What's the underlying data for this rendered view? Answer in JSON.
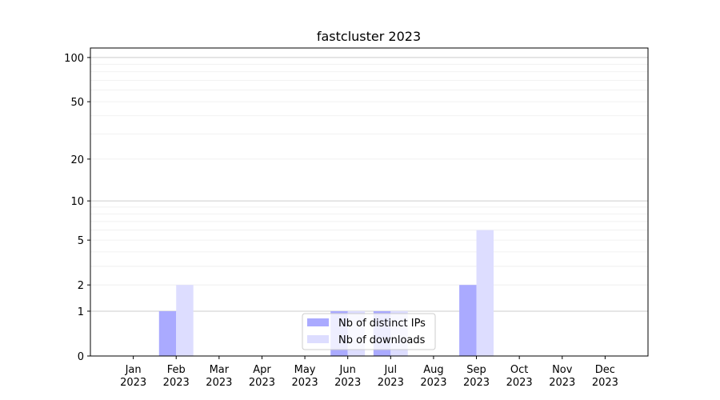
{
  "chart_data": {
    "type": "bar",
    "title": "fastcluster 2023",
    "xlabel": "",
    "ylabel": "",
    "yscale": "log10(1+y)",
    "ylim": [
      0,
      116
    ],
    "yticks": [
      0,
      1,
      2,
      5,
      10,
      20,
      50,
      100
    ],
    "ytick_labels": [
      "0",
      "1",
      "2",
      "5",
      "10",
      "20",
      "50",
      "100"
    ],
    "grid": true,
    "legend_placement": "lower center",
    "categories": [
      [
        "Jan",
        "2023"
      ],
      [
        "Feb",
        "2023"
      ],
      [
        "Mar",
        "2023"
      ],
      [
        "Apr",
        "2023"
      ],
      [
        "May",
        "2023"
      ],
      [
        "Jun",
        "2023"
      ],
      [
        "Jul",
        "2023"
      ],
      [
        "Aug",
        "2023"
      ],
      [
        "Sep",
        "2023"
      ],
      [
        "Oct",
        "2023"
      ],
      [
        "Nov",
        "2023"
      ],
      [
        "Dec",
        "2023"
      ]
    ],
    "series": [
      {
        "name": "Nb of distinct IPs",
        "color": "#aaaaff",
        "values": [
          0,
          1,
          0,
          0,
          0,
          1,
          1,
          0,
          2,
          0,
          0,
          0
        ]
      },
      {
        "name": "Nb of downloads",
        "color": "#ddddff",
        "values": [
          0,
          2,
          0,
          0,
          0,
          1,
          1,
          0,
          6,
          0,
          0,
          0
        ]
      }
    ]
  }
}
